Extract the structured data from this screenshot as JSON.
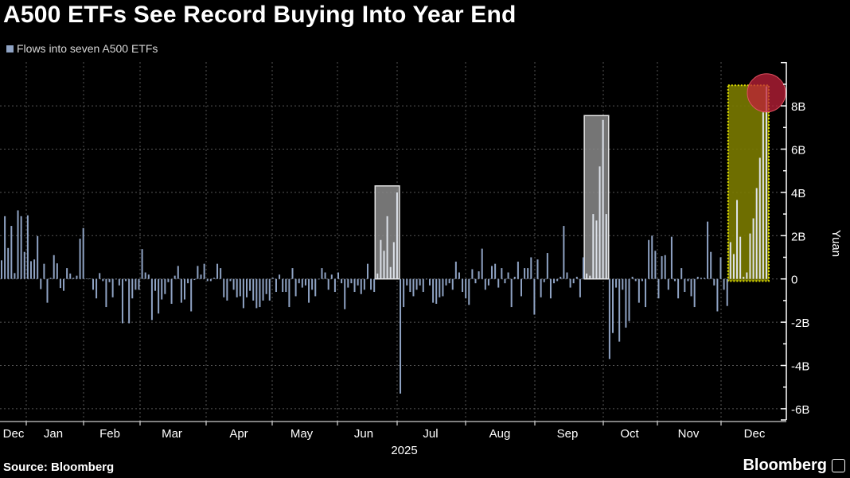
{
  "header": {
    "title": "A500 ETFs See Record Buying Into Year End",
    "legend": "Flows into seven A500 ETFs"
  },
  "footer": {
    "source": "Source: Bloomberg",
    "brand": "Bloomberg"
  },
  "colors": {
    "bar": "#8fa3c4",
    "bar_highlight": "#dde2ea",
    "gray_box": "#8a8a8a",
    "yellow_box": "#7a7a00",
    "yellow_border": "#e0e000",
    "circle": "#c0203a"
  },
  "chart_data": {
    "type": "bar",
    "title": "A500 ETFs See Record Buying Into Year End",
    "xlabel": "2025",
    "ylabel": "Yuan",
    "ylim": [
      -6.5,
      10
    ],
    "y_ticks": [
      {
        "v": 8,
        "label": "8B"
      },
      {
        "v": 6,
        "label": "6B"
      },
      {
        "v": 4,
        "label": "4B"
      },
      {
        "v": 2,
        "label": "2B"
      },
      {
        "v": 0,
        "label": "0"
      },
      {
        "v": -2,
        "label": "-2B"
      },
      {
        "v": -4,
        "label": "-4B"
      },
      {
        "v": -6,
        "label": "-6B"
      }
    ],
    "x_ticks": [
      "Dec",
      "Jan",
      "Feb",
      "Mar",
      "Apr",
      "May",
      "Jun",
      "Jul",
      "Aug",
      "Sep",
      "Oct",
      "Nov",
      "Dec"
    ],
    "x_year_label": "2025",
    "grid": true,
    "series": [
      {
        "name": "Flows into seven A500 ETFs",
        "unit": "billion yuan",
        "values": [
          0.86,
          2.9,
          1.43,
          2.45,
          0.27,
          3.17,
          2.9,
          1.25,
          2.94,
          0.82,
          0.9,
          1.98,
          -0.47,
          0.7,
          -1.1,
          0.05,
          1.1,
          0.72,
          -0.42,
          -0.55,
          0.5,
          0.25,
          0.05,
          0.15,
          1.86,
          2.35,
          0.02,
          0.02,
          -0.5,
          -0.9,
          0.27,
          -0.1,
          -1.3,
          -0.15,
          -0.85,
          0.0,
          -0.3,
          -2.05,
          -0.1,
          -2.05,
          -0.9,
          -0.5,
          -0.5,
          1.38,
          0.3,
          0.2,
          -1.9,
          -0.55,
          -1.6,
          -0.95,
          -0.7,
          -0.15,
          -1.15,
          0.15,
          0.6,
          -1.1,
          -0.95,
          -0.2,
          -1.5,
          -0.05,
          0.6,
          0.2,
          0.7,
          -0.1,
          -0.1,
          0.05,
          0.7,
          0.5,
          -0.85,
          -1.0,
          -0.1,
          -0.5,
          -0.85,
          -0.8,
          -1.35,
          -0.85,
          -0.55,
          -1.0,
          -1.35,
          -1.3,
          -1.0,
          -0.7,
          -1.0,
          0.05,
          -0.6,
          0.2,
          -0.6,
          -0.6,
          -1.3,
          0.5,
          -0.8,
          -0.2,
          -0.4,
          -0.3,
          -1.1,
          -0.5,
          -0.8,
          0.0,
          0.5,
          0.3,
          -0.5,
          0.2,
          -0.6,
          0.3,
          -0.2,
          -1.4,
          -0.4,
          -0.2,
          -0.6,
          -0.3,
          -0.7,
          -0.5,
          0.7,
          -0.5,
          -0.6,
          0.25,
          1.8,
          1.3,
          2.9,
          0.55,
          1.7,
          4.0,
          -5.3,
          -1.3,
          -0.3,
          -0.6,
          -0.8,
          -0.5,
          -0.3,
          -0.6,
          0.0,
          -0.3,
          -1.1,
          -1.15,
          -0.85,
          -0.8,
          -0.3,
          -0.2,
          -0.5,
          0.8,
          0.3,
          -0.6,
          -0.9,
          -1.2,
          0.45,
          -0.2,
          0.35,
          1.4,
          -0.5,
          -0.3,
          0.6,
          0.7,
          -0.4,
          0.5,
          -0.2,
          0.3,
          -1.3,
          0.1,
          0.8,
          -0.8,
          0.5,
          0.5,
          1.0,
          -1.65,
          0.9,
          -0.85,
          -0.15,
          1.2,
          -0.9,
          -0.2,
          -0.1,
          0.1,
          2.45,
          0.3,
          -0.4,
          -0.2,
          0.1,
          -0.85,
          1.0,
          0.25,
          0.15,
          3.0,
          2.7,
          5.2,
          7.35,
          3.0,
          -3.7,
          -2.5,
          -0.4,
          -2.9,
          -0.5,
          -2.25,
          -1.95,
          0.1,
          -0.1,
          -1.1,
          -0.1,
          -1.3,
          1.8,
          2.0,
          1.3,
          -0.9,
          1.05,
          1.1,
          -0.5,
          1.95,
          -0.1,
          -0.9,
          0.5,
          -0.6,
          -0.1,
          -0.8,
          -1.3,
          0.1,
          0.05,
          0.05,
          2.65,
          1.25,
          -0.3,
          -1.5,
          1.0,
          -0.5,
          -1.25,
          1.7,
          1.15,
          3.65,
          1.95,
          0.1,
          0.3,
          2.1,
          2.8,
          4.2,
          5.6,
          7.7,
          8.9
        ]
      }
    ],
    "highlights": [
      {
        "type": "gray",
        "start_index": 115,
        "end_index": 121,
        "top": 4.3,
        "bottom": 0
      },
      {
        "type": "gray",
        "start_index": 179,
        "end_index": 185,
        "top": 7.55,
        "bottom": 0
      },
      {
        "type": "yellow",
        "start_index": 223,
        "end_index": 234,
        "top": 8.95,
        "bottom": -0.1
      }
    ],
    "circle_marker": {
      "index": 234,
      "value": 8.6
    }
  }
}
